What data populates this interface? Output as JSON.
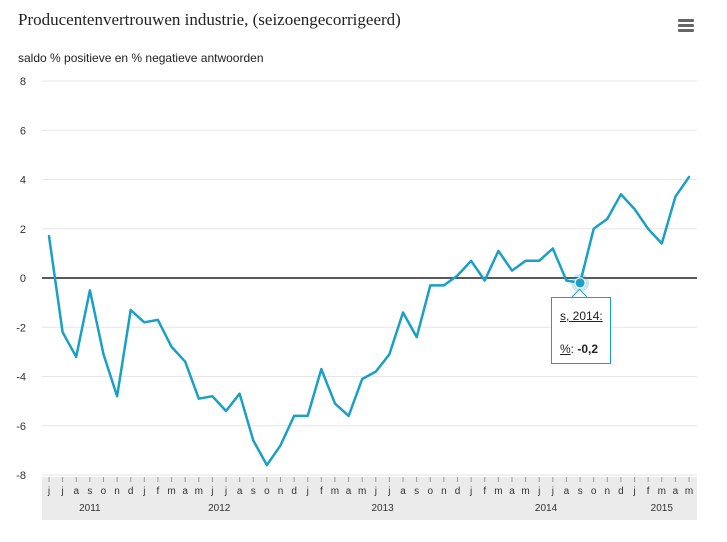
{
  "chart_data": {
    "type": "line",
    "title": "Producentenvertrouwen industrie, (seizoengecorrigeerd)",
    "ylabel": "saldo % positieve en % negatieve antwoorden",
    "ylim": [
      -8,
      8
    ],
    "yticks": [
      "8",
      "6",
      "4",
      "2",
      "0",
      "-2",
      "-4",
      "-6",
      "-8"
    ],
    "grid": true,
    "legend": "none",
    "x": [
      "j",
      "j",
      "a",
      "s",
      "o",
      "n",
      "d",
      "j",
      "f",
      "m",
      "a",
      "m",
      "j",
      "j",
      "a",
      "s",
      "o",
      "n",
      "d",
      "j",
      "f",
      "m",
      "a",
      "m",
      "j",
      "j",
      "a",
      "s",
      "o",
      "n",
      "d",
      "j",
      "f",
      "m",
      "a",
      "m",
      "j",
      "j",
      "a",
      "s",
      "o",
      "n",
      "d",
      "j",
      "f",
      "m",
      "a",
      "m"
    ],
    "year_labels": [
      {
        "label": "2011",
        "start": 0,
        "end": 6
      },
      {
        "label": "2012",
        "start": 7,
        "end": 18
      },
      {
        "label": "2013",
        "start": 19,
        "end": 30
      },
      {
        "label": "2014",
        "start": 31,
        "end": 42
      },
      {
        "label": "2015",
        "start": 43,
        "end": 47
      }
    ],
    "series": [
      {
        "values": [
          1.7,
          -2.2,
          -3.2,
          -0.5,
          -3.1,
          -4.8,
          -1.3,
          -1.8,
          -1.7,
          -2.8,
          -3.4,
          -4.9,
          -4.8,
          -5.4,
          -4.7,
          -6.6,
          -7.6,
          -6.8,
          -5.6,
          -5.6,
          -3.7,
          -5.1,
          -5.6,
          -4.1,
          -3.8,
          -3.1,
          -1.4,
          -2.4,
          -0.3,
          -0.3,
          0.1,
          0.7,
          -0.1,
          1.1,
          0.3,
          0.7,
          0.7,
          1.2,
          -0.1,
          -0.2,
          2.0,
          2.4,
          3.4,
          2.8,
          2.0,
          1.4,
          3.3,
          4.1
        ],
        "color": "#1aa0c4"
      }
    ],
    "highlight_index": 39
  },
  "tooltip": {
    "date": "s, 2014:",
    "key": "%",
    "value": "-0,2"
  },
  "colors": {
    "line": "#1aa0c4",
    "zero_line": "#222222",
    "grid": "#e6e6e6",
    "xaxis_band": "#ebebeb"
  },
  "icons": {
    "menu": "hamburger-menu-icon"
  }
}
